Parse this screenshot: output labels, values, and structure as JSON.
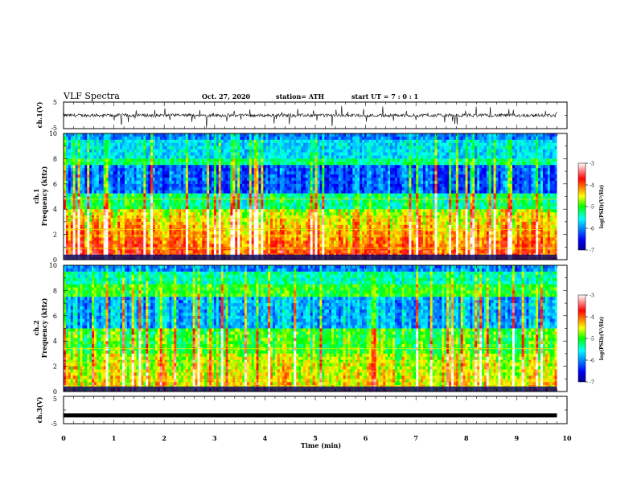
{
  "header": {
    "title": "VLF Spectra",
    "date": "Oct. 27, 2020",
    "station": "station= ATH",
    "start_time": "start  UT =   7 : 0  : 1"
  },
  "chart_data": [
    {
      "type": "line",
      "name": "ch1-waveform",
      "ylabel": "ch.1(V)",
      "xlim": [
        0,
        10
      ],
      "ylim": [
        -5,
        5
      ],
      "yticks": [
        "5",
        "-5"
      ],
      "baseline": 0,
      "data_extent_min": 9.8
    },
    {
      "type": "heatmap",
      "name": "ch1-spectrogram",
      "ylabel_top": "ch.1",
      "ylabel": "Frequency (kHz)",
      "xlim": [
        0,
        10
      ],
      "ylim": [
        0,
        10
      ],
      "yticks": [
        "0",
        "2",
        "4",
        "6",
        "8",
        "10"
      ],
      "colorbar": {
        "label": "log(PSD)(V²/Hz)",
        "ticks": [
          "-3",
          "-4",
          "-5",
          "-6",
          "-7"
        ],
        "range": [
          -7,
          -3
        ]
      }
    },
    {
      "type": "heatmap",
      "name": "ch2-spectrogram",
      "ylabel_top": "ch.2",
      "ylabel": "Frequency (kHz)",
      "xlim": [
        0,
        10
      ],
      "ylim": [
        0,
        10
      ],
      "yticks": [
        "0",
        "2",
        "4",
        "6",
        "8",
        "10"
      ],
      "colorbar": {
        "label": "log(PSD)(V²/Hz)",
        "ticks": [
          "-3",
          "-4",
          "-5",
          "-6",
          "-7"
        ],
        "range": [
          -7,
          -3
        ]
      }
    },
    {
      "type": "line",
      "name": "ch3-waveform",
      "ylabel": "ch.3(V)",
      "xlim": [
        0,
        10
      ],
      "ylim": [
        -5,
        5
      ],
      "yticks": [
        "5",
        "-5"
      ],
      "baseline": -2,
      "data_extent_min": 9.8
    }
  ],
  "x_axis": {
    "label": "Time  (min)",
    "ticks": [
      "0",
      "1",
      "2",
      "3",
      "4",
      "5",
      "6",
      "7",
      "8",
      "9",
      "10"
    ]
  }
}
